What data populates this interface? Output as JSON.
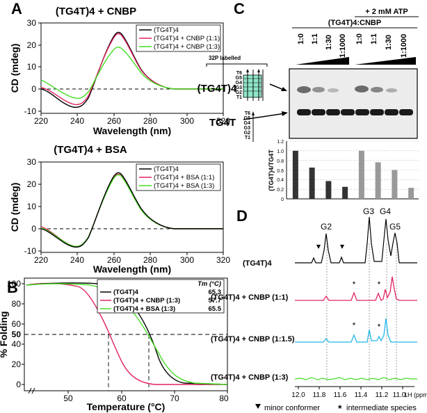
{
  "colors": {
    "black": "#000000",
    "red": "#e0245e",
    "green": "#44dd22",
    "cyan": "#22b7e6",
    "gel_bg": "#ececec",
    "bar_dark": "#333333",
    "bar_light": "#999999"
  },
  "panelA": {
    "label": "A",
    "top": {
      "title": "(TG4T)4 + CNBP",
      "legend": [
        "(TG4T)4",
        "(TG4T)4 + CNBP (1:1)",
        "(TG4T)4 + CNBP (1:3)"
      ],
      "ylabel": "CD (mdeg)",
      "xlabel": "Wavelength (nm)",
      "xticks": [
        "220",
        "240",
        "260",
        "280",
        "300",
        "320"
      ],
      "yticks": [
        "30",
        "20",
        "10",
        "0",
        "-10"
      ]
    },
    "bottom": {
      "title": "(TG4T)4 + BSA",
      "legend": [
        "(TG4T)4",
        "(TG4T)4 + BSA (1:1)",
        "(TG4T)4 + BSA (1:3)"
      ],
      "ylabel": "CD (mdeg)",
      "xlabel": "Wavelength (nm)",
      "xticks": [
        "220",
        "240",
        "260",
        "280",
        "300",
        "320"
      ],
      "yticks": [
        "30",
        "20",
        "10",
        "0",
        "-10"
      ]
    }
  },
  "panelB": {
    "label": "B",
    "ylabel": "% Folding",
    "xlabel": "Temperature (°C)",
    "xticks": [
      "50",
      "60",
      "70",
      "80"
    ],
    "yticks": [
      "100",
      "80",
      "60",
      "50",
      "40",
      "20",
      "0"
    ],
    "legend_header": "Tm (°C)",
    "legend": [
      {
        "name": "(TG4T)4",
        "tm": "65.3"
      },
      {
        "name": "(TG4T)4 + CNBP (1:3)",
        "tm": "57.7"
      },
      {
        "name": "(TG4T)4 + BSA (1:3)",
        "tm": "65.5"
      }
    ]
  },
  "panelC": {
    "label": "C",
    "atp_label": "+ 2 mM ATP",
    "ratio_header": "(TG4T)4:CNBP",
    "lanes": [
      "1:0",
      "1:1",
      "1:30",
      "1:1000",
      "1:0",
      "1:1",
      "1:30",
      "1:1000"
    ],
    "p32_label": "32P labelled",
    "quad_label": "(TG4T)4",
    "single_label": "TG4T",
    "strand_labels": [
      "T6",
      "G5",
      "G4",
      "G3",
      "G2",
      "T1"
    ],
    "bar_ylabel": "(TG4T)4/TG4T",
    "bar_yticks": [
      "1.2",
      "1.0",
      "0.8",
      "0.6",
      "0.4",
      "0.2",
      "0"
    ],
    "bar_values": [
      1.0,
      0.65,
      0.37,
      0.25,
      1.0,
      0.76,
      0.6,
      0.23
    ]
  },
  "panelD": {
    "label": "D",
    "peaks": [
      "G2",
      "G3",
      "G4",
      "G5"
    ],
    "traces": [
      "(TG4T)4",
      "(TG4T)4 + CNBP (1:1)",
      "(TG4T)4 + CNBP (1:1.5)",
      "(TG4T)4 + CNBP (1:3)"
    ],
    "xticks": [
      "12.0",
      "11.8",
      "11.6",
      "11.4",
      "11.2",
      "11.0"
    ],
    "xunit": "1H (ppm)",
    "legend_minor": "minor conformer",
    "legend_intermediate": "intermediate species"
  }
}
